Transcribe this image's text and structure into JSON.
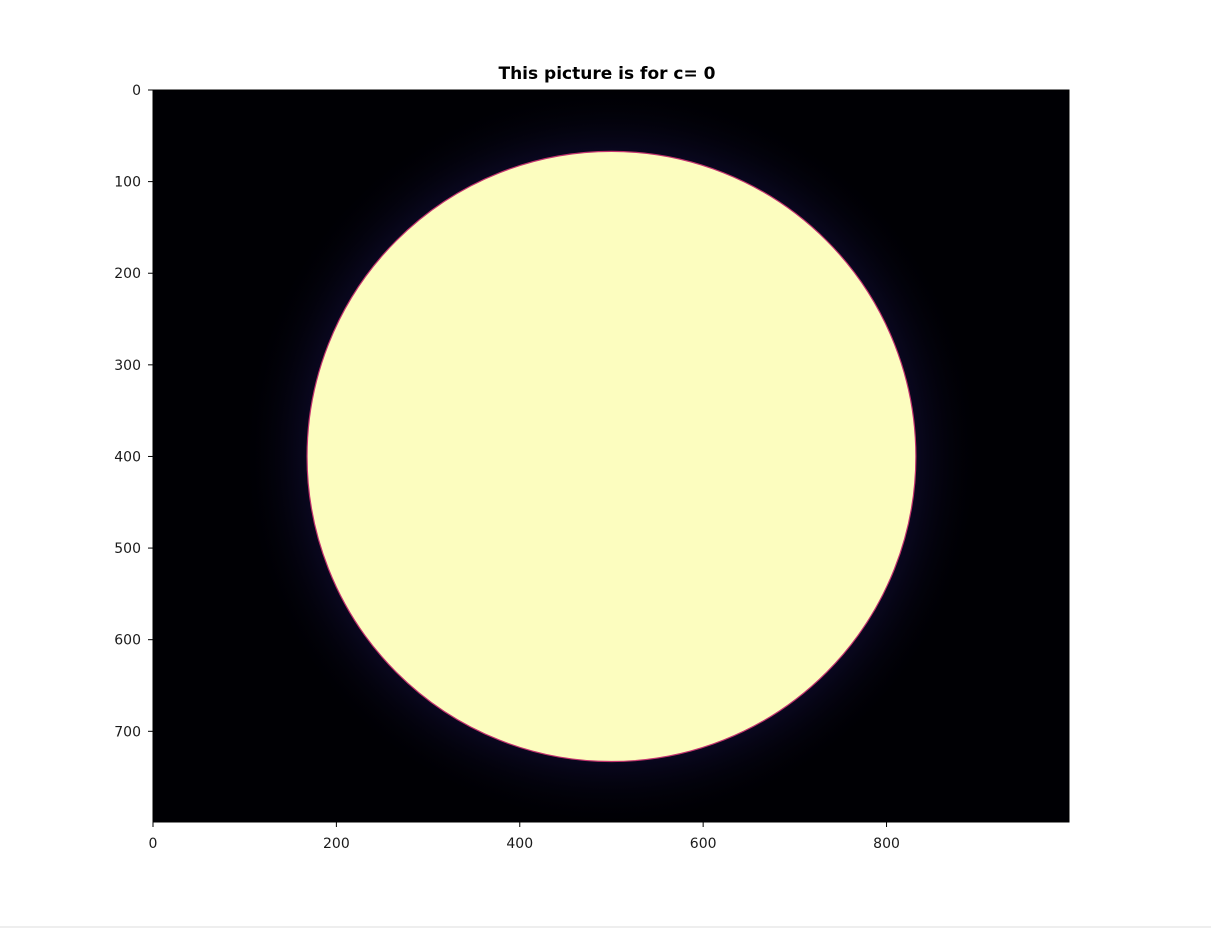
{
  "chart_data": {
    "type": "heatmap",
    "title": "This picture is for c= 0",
    "xlabel": "",
    "ylabel": "",
    "xlim": [
      0,
      999
    ],
    "ylim": [
      799,
      0
    ],
    "x_ticks": [
      0,
      200,
      400,
      600,
      800
    ],
    "y_ticks": [
      0,
      100,
      200,
      300,
      400,
      500,
      600,
      700
    ],
    "x_tick_labels": [
      "0",
      "200",
      "400",
      "600",
      "800"
    ],
    "y_tick_labels": [
      "0",
      "100",
      "200",
      "300",
      "400",
      "500",
      "600",
      "700"
    ],
    "colormap": "magma",
    "background_color": "#000004",
    "glow_color": "#0d0a29",
    "disc": {
      "center_x": 500,
      "center_y": 400,
      "radius_x": 332,
      "radius_y": 333,
      "fill_color": "#fcfdbf",
      "edge_color": "#c2336e"
    },
    "grid": false,
    "legend": "none"
  }
}
